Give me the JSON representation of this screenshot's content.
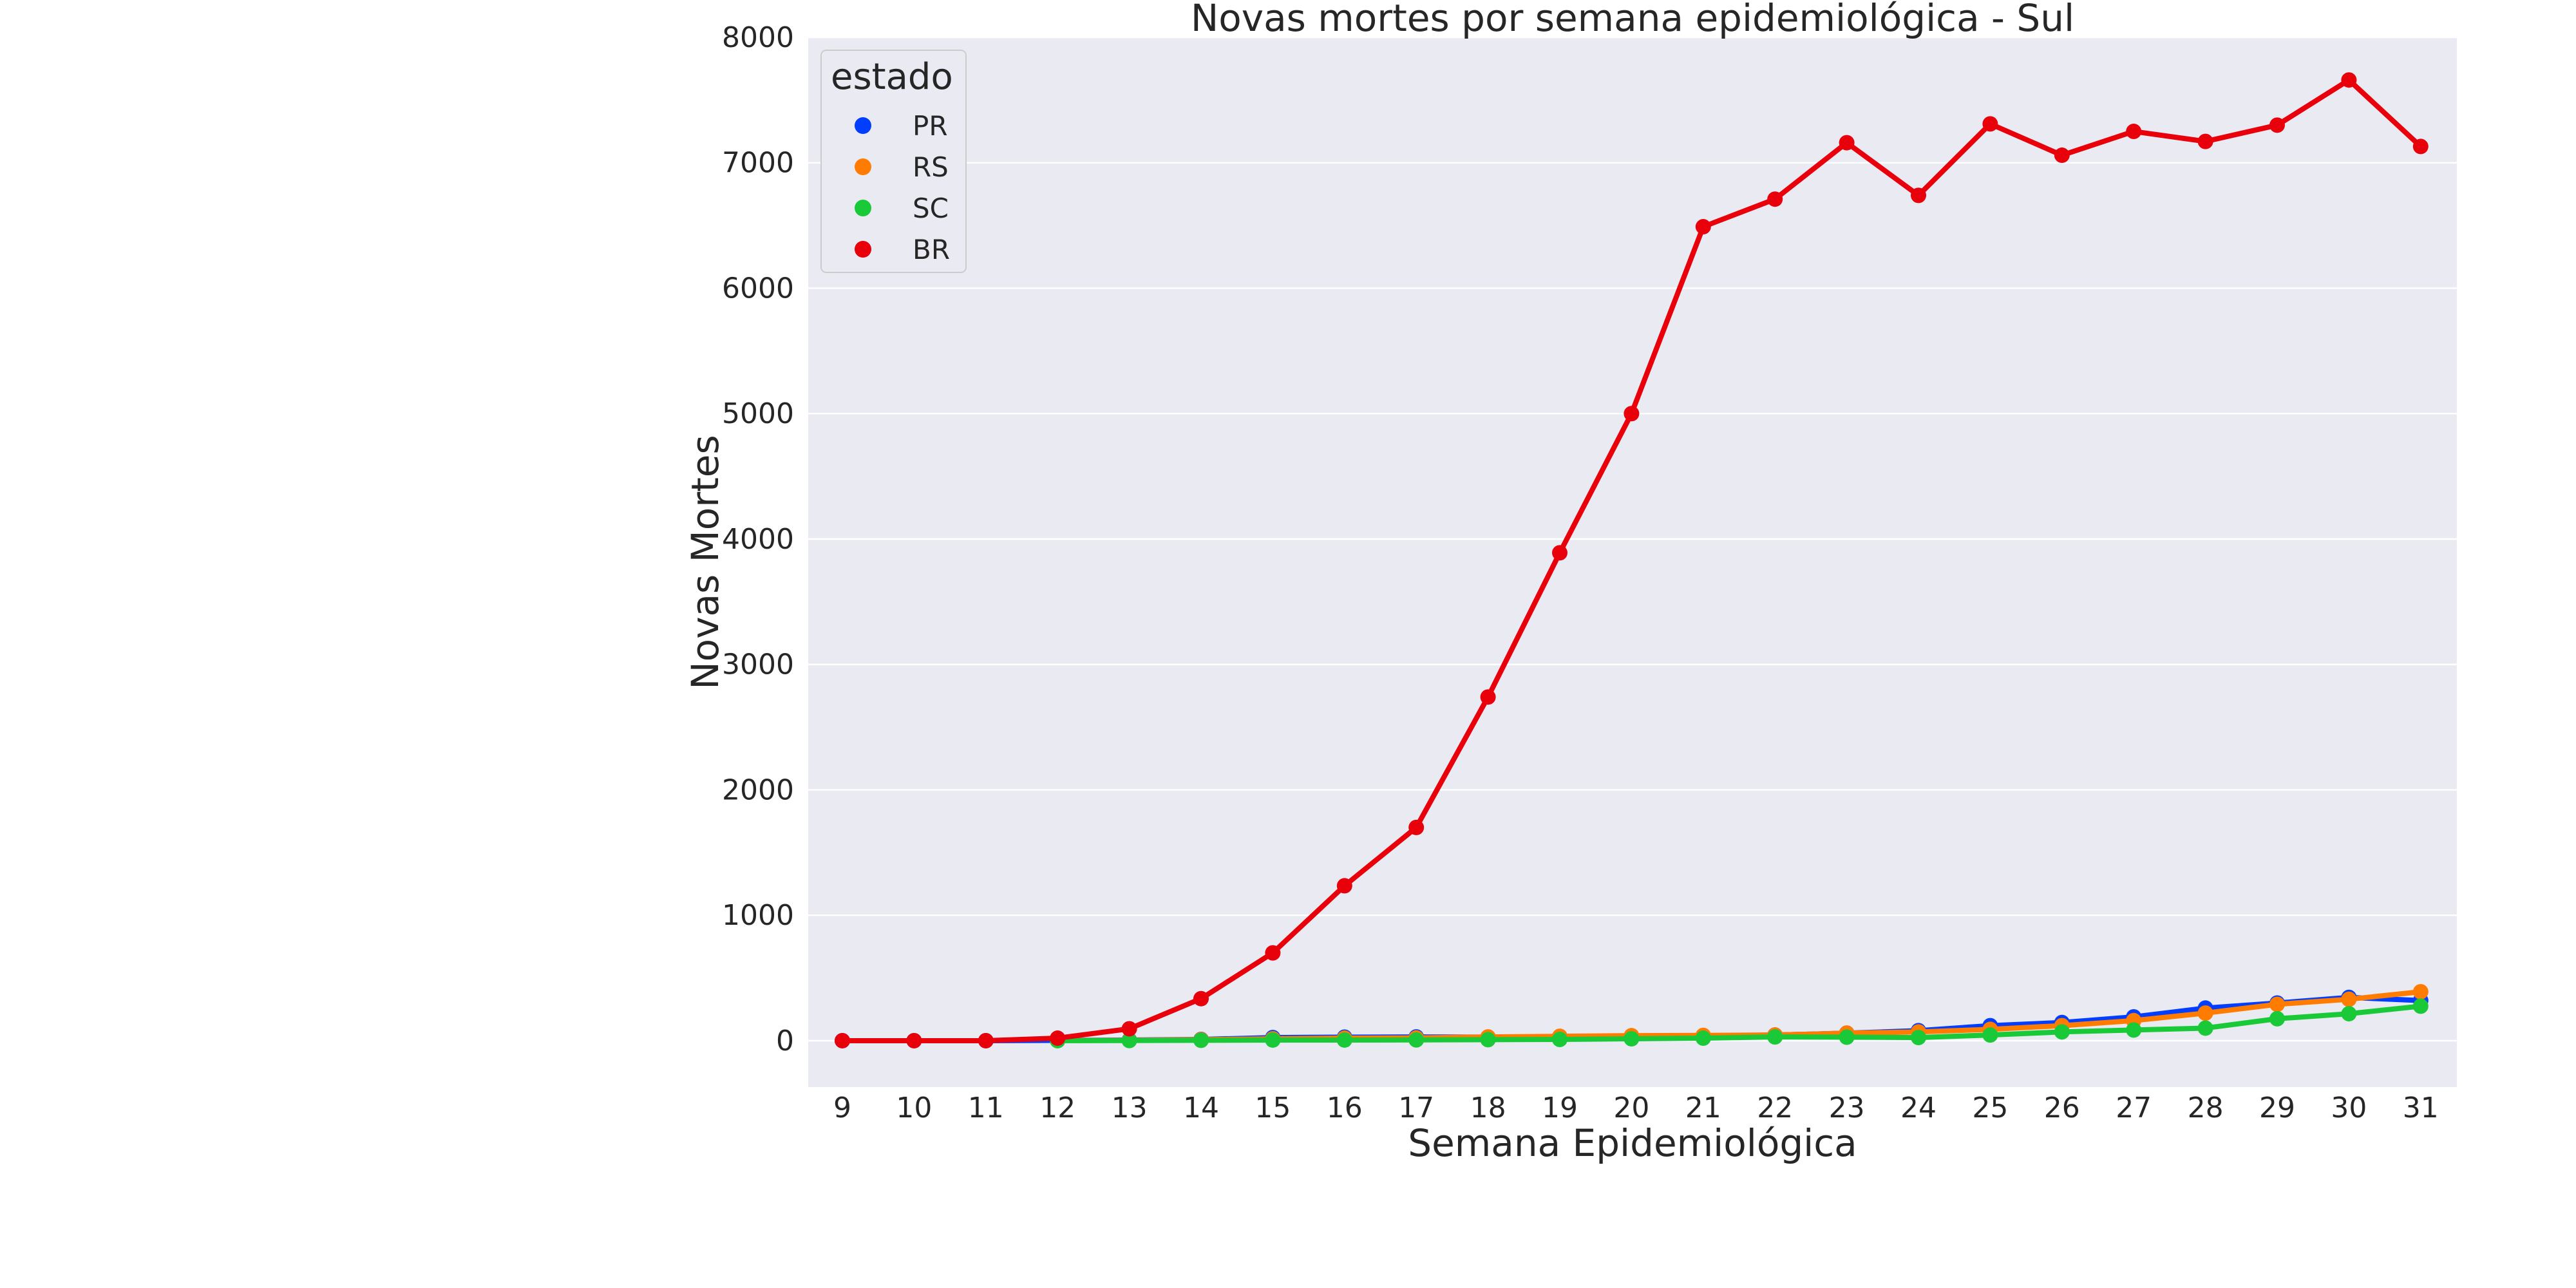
{
  "chart_data": {
    "type": "line",
    "title": "Novas mortes por semana epidemiológica - Sul",
    "xlabel": "Semana Epidemiológica",
    "ylabel": "Novas Mortes",
    "ylim": [
      -370,
      8000
    ],
    "yticks": [
      0,
      1000,
      2000,
      3000,
      4000,
      5000,
      6000,
      7000,
      8000
    ],
    "grid": true,
    "legend": {
      "title": "estado",
      "position": "top-left"
    },
    "categories": [
      "9",
      "10",
      "11",
      "12",
      "13",
      "14",
      "15",
      "16",
      "17",
      "18",
      "19",
      "20",
      "21",
      "22",
      "23",
      "24",
      "25",
      "26",
      "27",
      "28",
      "29",
      "30",
      "31"
    ],
    "series": [
      {
        "name": "PR",
        "color": "#023eff",
        "x": [
          9,
          10,
          11,
          12,
          13,
          14,
          15,
          16,
          17,
          18,
          19,
          20,
          21,
          22,
          23,
          24,
          25,
          26,
          27,
          28,
          29,
          30,
          31
        ],
        "values": [
          0,
          0,
          0,
          2,
          5,
          10,
          25,
          28,
          30,
          28,
          32,
          35,
          38,
          45,
          60,
          80,
          120,
          145,
          190,
          260,
          300,
          345,
          320
        ]
      },
      {
        "name": "RS",
        "color": "#ff7c00",
        "x": [
          12,
          13,
          14,
          15,
          16,
          17,
          18,
          19,
          20,
          21,
          22,
          23,
          24,
          25,
          26,
          27,
          28,
          29,
          30,
          31
        ],
        "values": [
          1,
          3,
          8,
          15,
          20,
          22,
          30,
          35,
          40,
          42,
          45,
          60,
          70,
          90,
          120,
          160,
          220,
          290,
          330,
          390
        ]
      },
      {
        "name": "SC",
        "color": "#1ac938",
        "x": [
          12,
          13,
          14,
          15,
          16,
          17,
          18,
          19,
          20,
          21,
          22,
          23,
          24,
          25,
          26,
          27,
          28,
          29,
          30,
          31
        ],
        "values": [
          0,
          1,
          3,
          5,
          5,
          6,
          8,
          10,
          15,
          20,
          30,
          28,
          25,
          45,
          70,
          85,
          100,
          175,
          215,
          275
        ]
      },
      {
        "name": "BR",
        "color": "#e8000b",
        "x": [
          9,
          10,
          11,
          12,
          13,
          14,
          15,
          16,
          17,
          18,
          19,
          20,
          21,
          22,
          23,
          24,
          25,
          26,
          27,
          28,
          29,
          30,
          31
        ],
        "values": [
          0,
          0,
          0,
          20,
          95,
          335,
          700,
          1235,
          1700,
          2740,
          3890,
          5000,
          6490,
          6710,
          7160,
          6740,
          7310,
          7060,
          7250,
          7170,
          7300,
          7660,
          7130
        ]
      }
    ]
  }
}
